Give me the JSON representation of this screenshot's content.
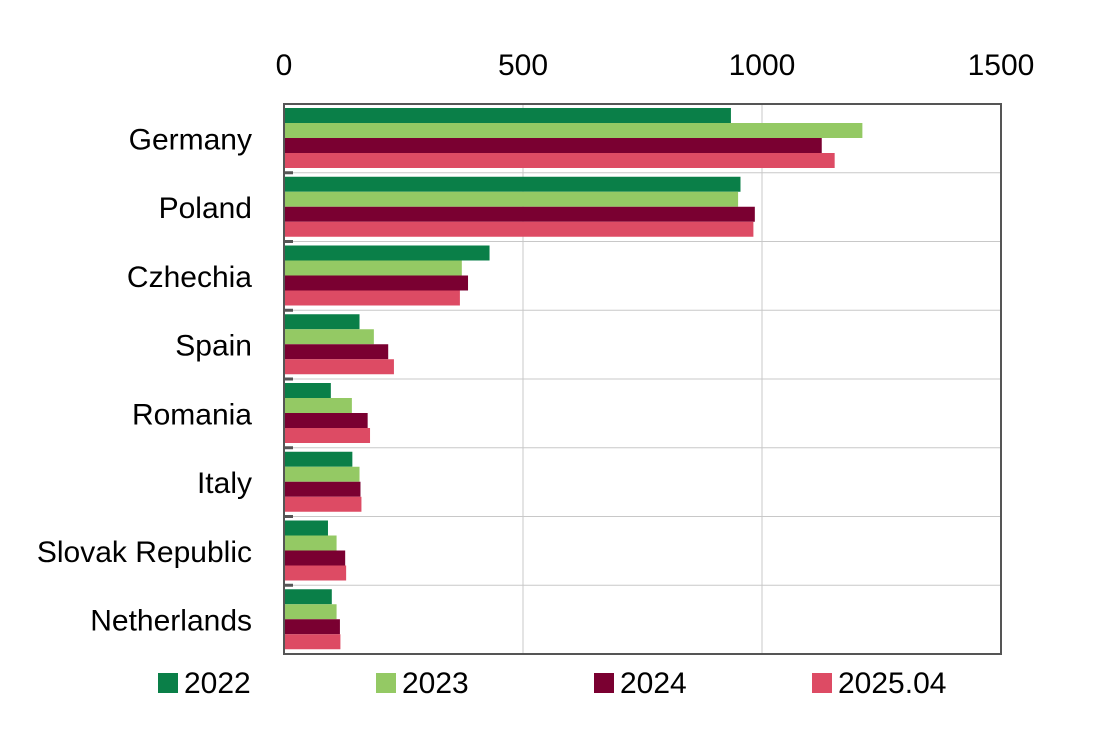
{
  "chart_data": {
    "type": "bar",
    "orientation": "horizontal",
    "x_axis_position": "top",
    "title": "",
    "xlabel": "",
    "ylabel": "",
    "xlim": [
      0,
      1500
    ],
    "x_ticks": [
      "0",
      "500",
      "1000",
      "1500"
    ],
    "x_tick_values": [
      0,
      500,
      1000,
      1500
    ],
    "grid": true,
    "legend_position": "bottom",
    "categories": [
      "Germany",
      "Poland",
      "Czhechia",
      "Spain",
      "Romania",
      "Italy",
      "Slovak Republic",
      "Netherlands"
    ],
    "series": [
      {
        "name": "2022",
        "color": "#0a7f48",
        "values": [
          935,
          955,
          430,
          158,
          98,
          143,
          92,
          100
        ]
      },
      {
        "name": "2023",
        "color": "#94c964",
        "values": [
          1210,
          950,
          372,
          188,
          142,
          158,
          110,
          110
        ]
      },
      {
        "name": "2024",
        "color": "#7a0031",
        "values": [
          1125,
          985,
          385,
          218,
          175,
          160,
          128,
          117
        ]
      },
      {
        "name": "2025.04",
        "color": "#dd4b64",
        "values": [
          1152,
          982,
          368,
          230,
          180,
          162,
          130,
          118
        ]
      }
    ]
  }
}
